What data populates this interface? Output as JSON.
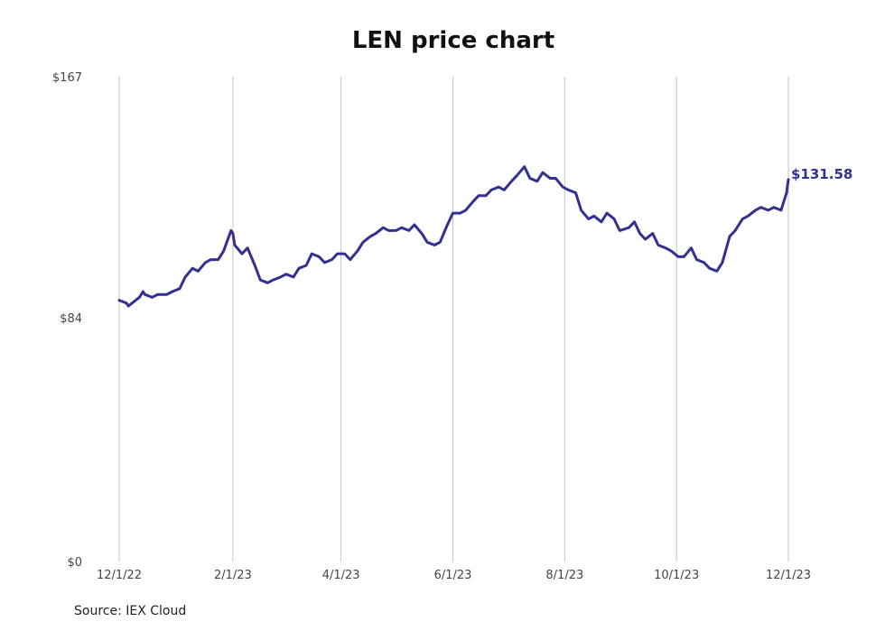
{
  "chart_data": {
    "type": "line",
    "title": "LEN price chart",
    "source": "Source: IEX Cloud",
    "yticks": [
      "$0",
      "$84",
      "$167"
    ],
    "ylim": [
      0,
      167
    ],
    "xlim": [
      "2022-12-01",
      "2023-12-01"
    ],
    "xticks": [
      {
        "date": "2022-12-01",
        "label": "12/1/22"
      },
      {
        "date": "2023-02-01",
        "label": "2/1/23"
      },
      {
        "date": "2023-04-01",
        "label": "4/1/23"
      },
      {
        "date": "2023-06-01",
        "label": "6/1/23"
      },
      {
        "date": "2023-08-01",
        "label": "8/1/23"
      },
      {
        "date": "2023-10-01",
        "label": "10/1/23"
      },
      {
        "date": "2023-12-01",
        "label": "12/1/23"
      }
    ],
    "grid": "vertical",
    "line_color": "#33318f",
    "end_label": "$131.58",
    "series": [
      {
        "x": [
          "2022-12-01",
          "2022-12-05",
          "2022-12-06",
          "2022-12-08",
          "2022-12-12",
          "2022-12-14",
          "2022-12-15",
          "2022-12-19",
          "2022-12-22",
          "2022-12-27",
          "2022-12-30",
          "2023-01-03",
          "2023-01-06",
          "2023-01-10",
          "2023-01-13",
          "2023-01-17",
          "2023-01-20",
          "2023-01-24",
          "2023-01-27",
          "2023-01-31",
          "2023-02-01",
          "2023-02-02",
          "2023-02-06",
          "2023-02-09",
          "2023-02-13",
          "2023-02-16",
          "2023-02-20",
          "2023-02-23",
          "2023-02-27",
          "2023-03-02",
          "2023-03-06",
          "2023-03-09",
          "2023-03-13",
          "2023-03-16",
          "2023-03-20",
          "2023-03-23",
          "2023-03-27",
          "2023-03-30",
          "2023-04-03",
          "2023-04-06",
          "2023-04-10",
          "2023-04-13",
          "2023-04-17",
          "2023-04-20",
          "2023-04-24",
          "2023-04-27",
          "2023-05-01",
          "2023-05-04",
          "2023-05-08",
          "2023-05-11",
          "2023-05-15",
          "2023-05-18",
          "2023-05-22",
          "2023-05-25",
          "2023-05-29",
          "2023-06-01",
          "2023-06-05",
          "2023-06-08",
          "2023-06-12",
          "2023-06-15",
          "2023-06-19",
          "2023-06-22",
          "2023-06-26",
          "2023-06-29",
          "2023-07-03",
          "2023-07-06",
          "2023-07-10",
          "2023-07-13",
          "2023-07-17",
          "2023-07-20",
          "2023-07-24",
          "2023-07-27",
          "2023-07-31",
          "2023-08-03",
          "2023-08-07",
          "2023-08-10",
          "2023-08-14",
          "2023-08-17",
          "2023-08-21",
          "2023-08-24",
          "2023-08-28",
          "2023-08-31",
          "2023-09-05",
          "2023-09-08",
          "2023-09-11",
          "2023-09-14",
          "2023-09-18",
          "2023-09-21",
          "2023-09-25",
          "2023-09-28",
          "2023-10-02",
          "2023-10-05",
          "2023-10-09",
          "2023-10-12",
          "2023-10-16",
          "2023-10-19",
          "2023-10-23",
          "2023-10-26",
          "2023-10-30",
          "2023-11-02",
          "2023-11-06",
          "2023-11-09",
          "2023-11-13",
          "2023-11-16",
          "2023-11-20",
          "2023-11-23",
          "2023-11-27",
          "2023-11-30",
          "2023-12-01"
        ],
        "values": [
          90,
          89,
          88,
          89,
          91,
          93,
          92,
          91,
          92,
          92,
          93,
          94,
          98,
          101,
          100,
          103,
          104,
          104,
          107,
          114,
          113,
          109,
          106,
          108,
          102,
          97,
          96,
          97,
          98,
          99,
          98,
          101,
          102,
          106,
          105,
          103,
          104,
          106,
          106,
          104,
          107,
          110,
          112,
          113,
          115,
          114,
          114,
          115,
          114,
          116,
          113,
          110,
          109,
          110,
          116,
          120,
          120,
          121,
          124,
          126,
          126,
          128,
          129,
          128,
          131,
          133,
          136,
          132,
          131,
          134,
          132,
          132,
          129,
          128,
          127,
          121,
          118,
          119,
          117,
          120,
          118,
          114,
          115,
          117,
          113,
          111,
          113,
          109,
          108,
          107,
          105,
          105,
          108,
          104,
          103,
          101,
          100,
          103,
          112,
          114,
          118,
          119,
          121,
          122,
          121,
          122,
          121,
          127,
          131.58
        ]
      }
    ]
  }
}
